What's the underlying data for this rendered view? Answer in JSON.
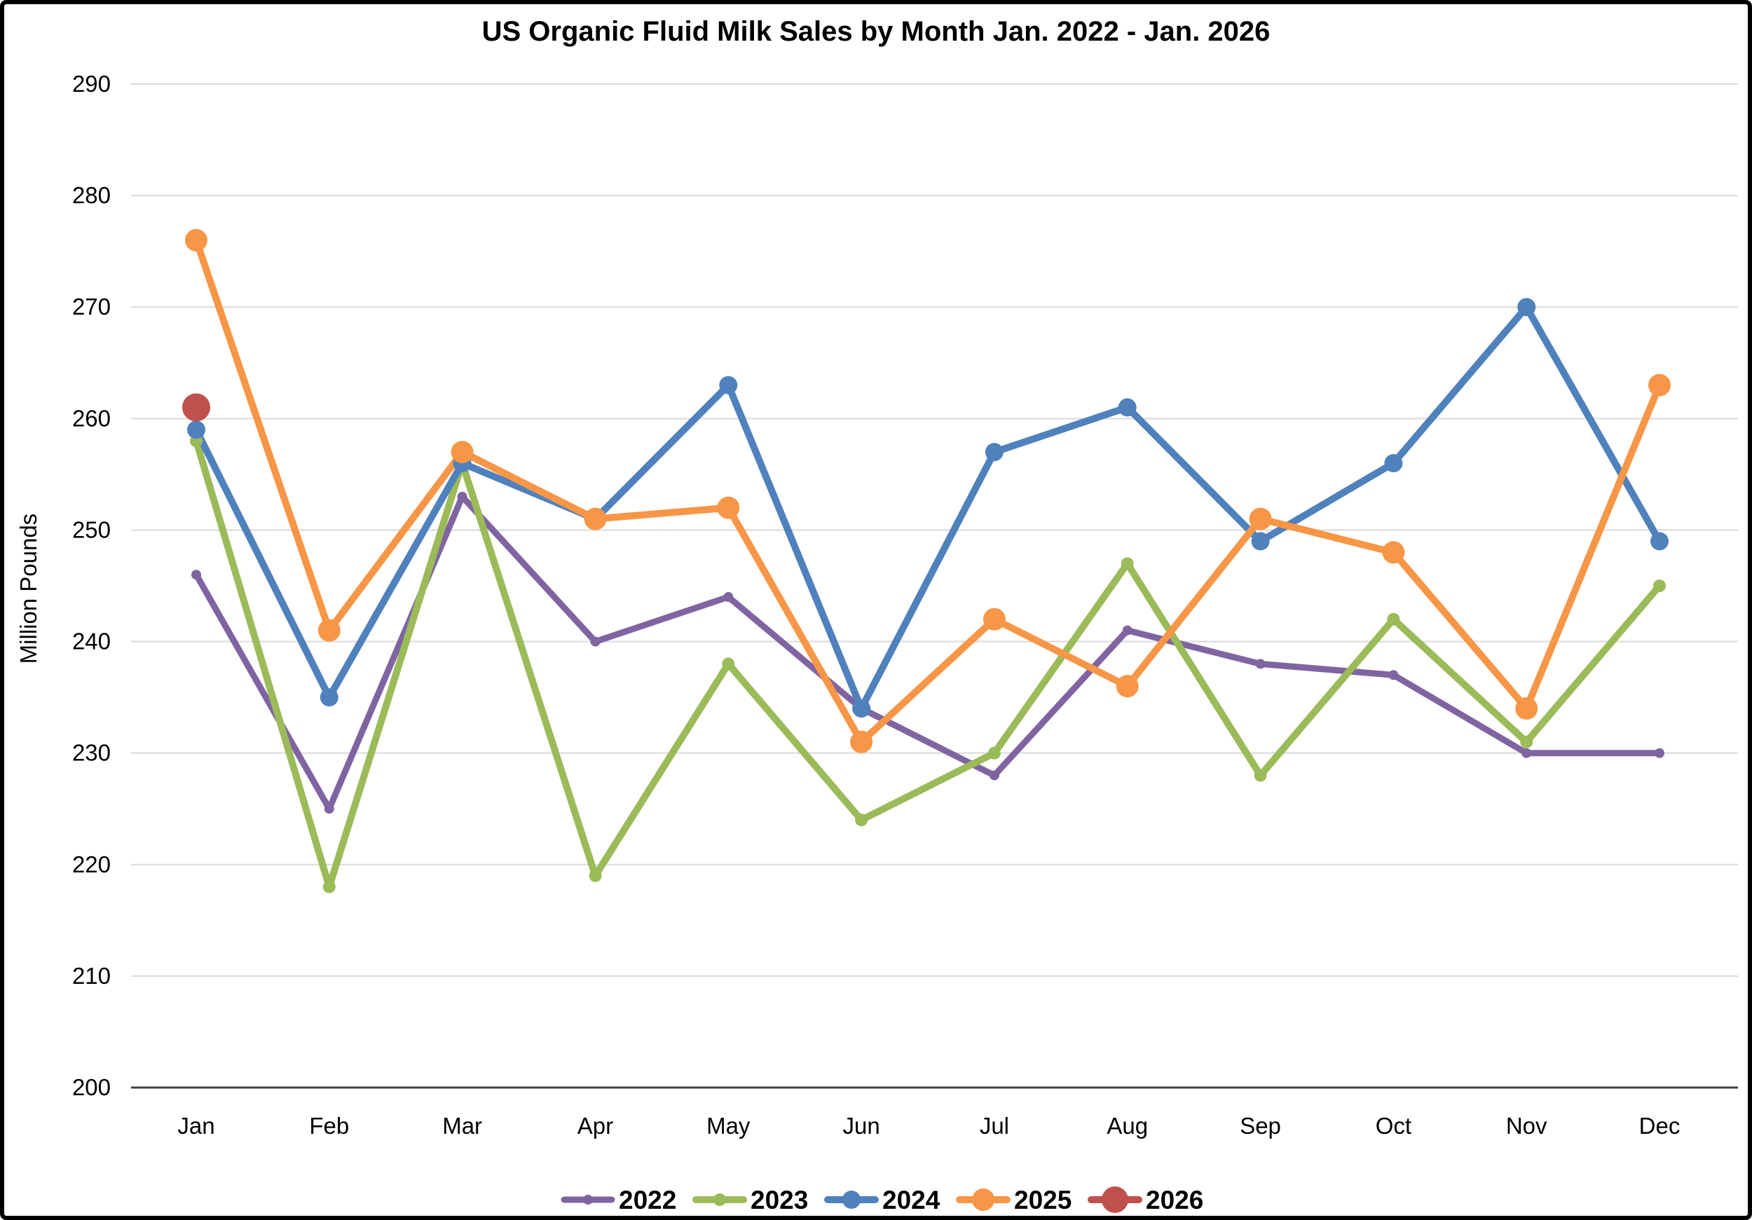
{
  "chart_data": {
    "type": "line",
    "title": "US Organic Fluid Milk Sales by Month Jan. 2022 - Jan. 2026",
    "ylabel": "Million Pounds",
    "categories": [
      "Jan",
      "Feb",
      "Mar",
      "Apr",
      "May",
      "Jun",
      "Jul",
      "Aug",
      "Sep",
      "Oct",
      "Nov",
      "Dec"
    ],
    "y_axis": {
      "min": 200,
      "max": 290,
      "step": 10
    },
    "grid": true,
    "legend_position": "bottom-center",
    "series": [
      {
        "name": "2022",
        "color": "#8064A2",
        "marker_radius": 7,
        "line_width": 9,
        "values": [
          246,
          225,
          253,
          240,
          244,
          234,
          228,
          241,
          238,
          237,
          230,
          230
        ]
      },
      {
        "name": "2023",
        "color": "#9BBB59",
        "marker_radius": 9,
        "line_width": 10,
        "values": [
          258,
          218,
          256,
          219,
          238,
          224,
          230,
          247,
          228,
          242,
          231,
          245
        ]
      },
      {
        "name": "2024",
        "color": "#4F81BD",
        "marker_radius": 13,
        "line_width": 10,
        "values": [
          259,
          235,
          256,
          251,
          263,
          234,
          257,
          261,
          249,
          256,
          270,
          249
        ]
      },
      {
        "name": "2025",
        "color": "#F79646",
        "marker_radius": 16,
        "line_width": 10,
        "values": [
          276,
          241,
          257,
          251,
          252,
          231,
          242,
          236,
          251,
          248,
          234,
          263
        ]
      },
      {
        "name": "2026",
        "color": "#C0504D",
        "marker_radius": 20,
        "line_width": 10,
        "values": [
          261,
          null,
          null,
          null,
          null,
          null,
          null,
          null,
          null,
          null,
          null,
          null
        ]
      }
    ],
    "colors": {
      "gridline": "#D9D9D9",
      "axis": "#404040",
      "text": "#000000",
      "background": "#FFFFFF",
      "border": "#000000"
    }
  }
}
